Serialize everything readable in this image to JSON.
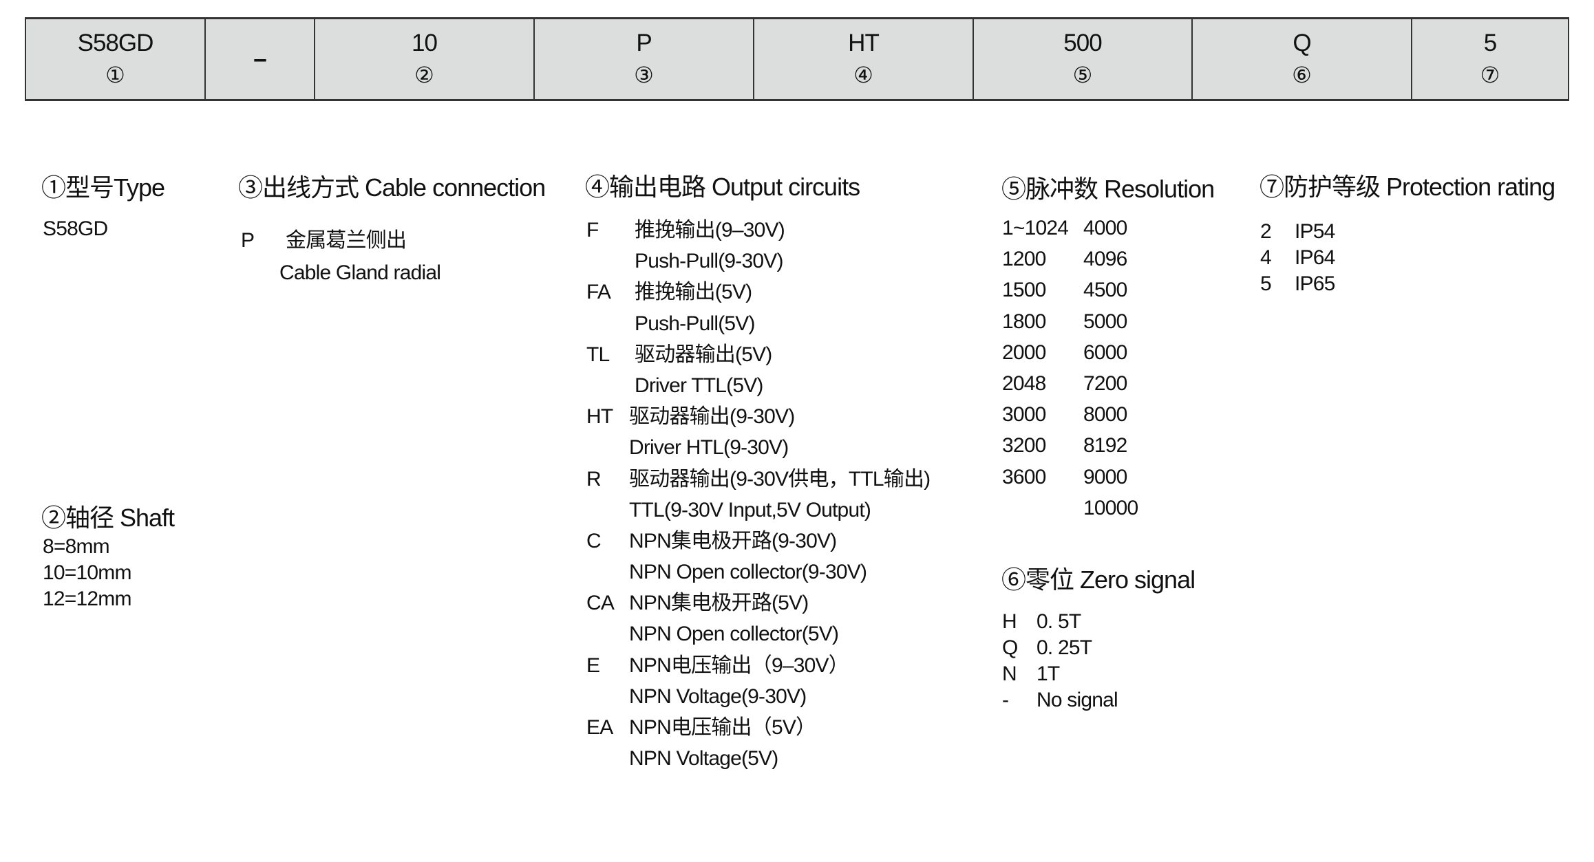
{
  "header": [
    {
      "value": "S58GD",
      "num": "①"
    },
    {
      "value": "–",
      "num": ""
    },
    {
      "value": "10",
      "num": "②"
    },
    {
      "value": "P",
      "num": "③"
    },
    {
      "value": "HT",
      "num": "④"
    },
    {
      "value": "500",
      "num": "⑤"
    },
    {
      "value": "Q",
      "num": "⑥"
    },
    {
      "value": "5",
      "num": "⑦"
    }
  ],
  "type": {
    "title": "①型号Type",
    "items": [
      "S58GD"
    ]
  },
  "shaft": {
    "title": "②轴径 Shaft",
    "items": [
      "8=8mm",
      "10=10mm",
      "12=12mm"
    ]
  },
  "cable": {
    "title": "③出线方式 Cable connection",
    "code": "P",
    "cn": "金属葛兰侧出",
    "en": "Cable Gland radial"
  },
  "output": {
    "title": "④输出电路 Output circuits",
    "items": [
      {
        "code": "F",
        "cn": "推挽输出(9–30V)",
        "en": "Push-Pull(9-30V)"
      },
      {
        "code": "FA",
        "cn": "推挽输出(5V)",
        "en": "Push-Pull(5V)"
      },
      {
        "code": "TL",
        "cn": "驱动器输出(5V)",
        "en": "Driver TTL(5V)"
      },
      {
        "code": "HT",
        "cn": "驱动器输出(9-30V)",
        "en": "Driver HTL(9-30V)"
      },
      {
        "code": "R",
        "cn": "驱动器输出(9-30V供电，TTL输出)",
        "en": "TTL(9-30V Input,5V Output)"
      },
      {
        "code": "C",
        "cn": "NPN集电极开路(9-30V)",
        "en": "NPN Open collector(9-30V)"
      },
      {
        "code": "CA",
        "cn": "NPN集电极开路(5V)",
        "en": "NPN Open collector(5V)"
      },
      {
        "code": "E",
        "cn": "NPN电压输出（9–30V）",
        "en": "NPN Voltage(9-30V)"
      },
      {
        "code": "EA",
        "cn": "NPN电压输出（5V）",
        "en": "NPN Voltage(5V)"
      }
    ]
  },
  "resolution": {
    "title": "⑤脉冲数 Resolution",
    "col1": [
      "1~1024",
      "1200",
      "1500",
      "1800",
      "2000",
      "2048",
      "3000",
      "3200",
      "3600",
      ""
    ],
    "col2": [
      "4000",
      "4096",
      "4500",
      "5000",
      "6000",
      "7200",
      "8000",
      "8192",
      "9000",
      "10000"
    ]
  },
  "zero": {
    "title": "⑥零位  Zero signal",
    "items": [
      {
        "code": "H",
        "value": "0. 5T"
      },
      {
        "code": "Q",
        "value": "0. 25T"
      },
      {
        "code": "N",
        "value": "1T"
      },
      {
        "code": "-",
        "value": "No signal"
      }
    ]
  },
  "protection": {
    "title": "⑦防护等级 Protection  rating",
    "items": [
      {
        "code": "2",
        "value": "IP54"
      },
      {
        "code": "4",
        "value": "IP64"
      },
      {
        "code": "5",
        "value": "IP65"
      }
    ]
  }
}
